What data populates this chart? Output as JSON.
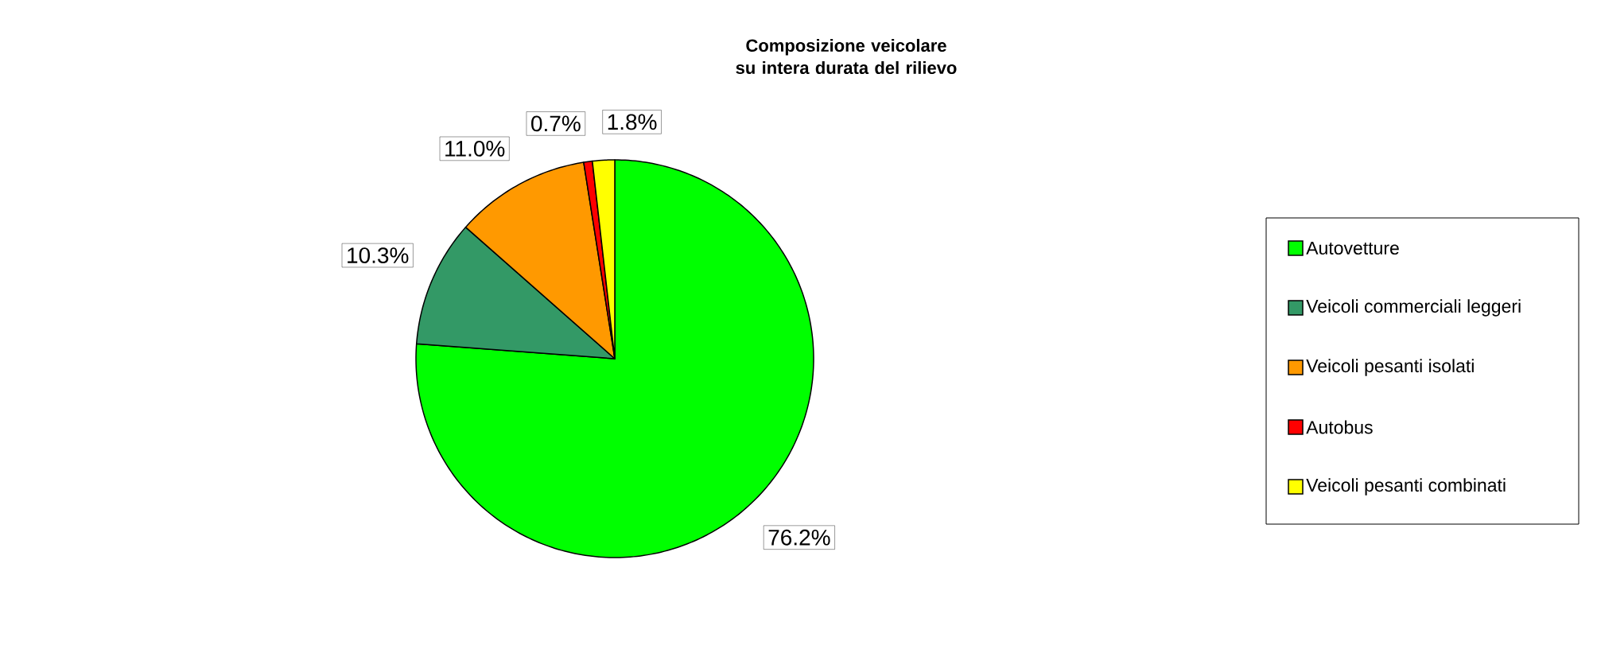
{
  "chart_data": {
    "type": "pie",
    "title": "Composizione veicolare su intera durata del rilievo",
    "categories": [
      "Autovetture",
      "Veicoli commerciali leggeri",
      "Veicoli pesanti isolati",
      "Autobus",
      "Veicoli pesanti combinati"
    ],
    "values": [
      76.2,
      10.3,
      11.0,
      0.7,
      1.8
    ],
    "value_labels": [
      "76.2%",
      "10.3%",
      "11.0%",
      "0.7%",
      "1.8%"
    ],
    "colors": [
      "#00ff00",
      "#339966",
      "#ff9900",
      "#ff0000",
      "#ffff00"
    ],
    "legend": "right"
  }
}
